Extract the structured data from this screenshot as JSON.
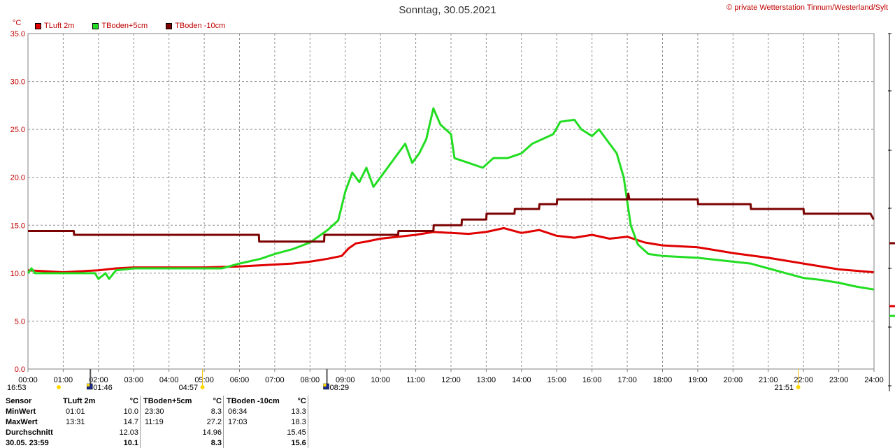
{
  "header": {
    "title": "Sonntag, 30.05.2021",
    "copyright": "© private Wetterstation Tinnum/Westerland/Sylt",
    "unit": "°C"
  },
  "legend": [
    {
      "label": "TLuft 2m",
      "color": "#e00000"
    },
    {
      "label": "TBoden+5cm",
      "color": "#22dd22"
    },
    {
      "label": "TBoden -10cm",
      "color": "#7b0000"
    }
  ],
  "markers": [
    {
      "label": "16:53",
      "time": 0.0,
      "icon": "sun-icon"
    },
    {
      "label": "01:46",
      "time": 1.77,
      "icon": "moon-icon"
    },
    {
      "label": "04:57",
      "time": 4.95,
      "icon": "sun-icon"
    },
    {
      "label": "08:29",
      "time": 8.48,
      "icon": "moon-icon"
    },
    {
      "label": "21:51",
      "time": 21.85,
      "icon": "sun-icon"
    }
  ],
  "stats": {
    "header": [
      "Sensor",
      "TLuft 2m",
      "°C",
      "TBoden+5cm",
      "°C",
      "TBoden -10cm",
      "°C"
    ],
    "rows": [
      [
        "MinWert",
        "01:01",
        "10.0",
        "23:30",
        "8.3",
        "06:34",
        "13.3"
      ],
      [
        "MaxWert",
        "13:31",
        "14.7",
        "11:19",
        "27.2",
        "17:03",
        "18.3"
      ],
      [
        "Durchschnitt",
        "",
        "12.03",
        "",
        "14.96",
        "",
        "15.45"
      ],
      [
        "30.05. 23:59",
        "",
        "10.1",
        "",
        "8.3",
        "",
        "15.6"
      ]
    ]
  },
  "chart_data": {
    "type": "line",
    "xlabel": "",
    "ylabel": "°C",
    "xlim": [
      0,
      24
    ],
    "ylim": [
      0,
      35
    ],
    "grid": true,
    "legend_position": "top-left",
    "x_ticks": [
      "00:00",
      "01:00",
      "02:00",
      "03:00",
      "04:00",
      "05:00",
      "06:00",
      "07:00",
      "08:00",
      "09:00",
      "10:00",
      "11:00",
      "12:00",
      "13:00",
      "14:00",
      "15:00",
      "16:00",
      "17:00",
      "18:00",
      "19:00",
      "20:00",
      "21:00",
      "22:00",
      "23:00",
      "24:00"
    ],
    "y_ticks": [
      "0.0",
      "5.0",
      "10.0",
      "15.0",
      "20.0",
      "25.0",
      "30.0",
      "35.0"
    ],
    "series": [
      {
        "name": "TLuft 2m",
        "color": "#e00000",
        "points": [
          [
            0,
            10.3
          ],
          [
            0.5,
            10.2
          ],
          [
            1.0,
            10.1
          ],
          [
            1.5,
            10.2
          ],
          [
            2.0,
            10.3
          ],
          [
            2.5,
            10.5
          ],
          [
            3.0,
            10.6
          ],
          [
            4.0,
            10.6
          ],
          [
            5.0,
            10.6
          ],
          [
            6.0,
            10.7
          ],
          [
            6.5,
            10.8
          ],
          [
            7.0,
            10.9
          ],
          [
            7.5,
            11.0
          ],
          [
            8.0,
            11.2
          ],
          [
            8.5,
            11.5
          ],
          [
            8.9,
            11.8
          ],
          [
            9.1,
            12.6
          ],
          [
            9.3,
            13.1
          ],
          [
            9.6,
            13.3
          ],
          [
            10.0,
            13.6
          ],
          [
            10.5,
            13.8
          ],
          [
            11.0,
            14.0
          ],
          [
            11.5,
            14.3
          ],
          [
            12.0,
            14.2
          ],
          [
            12.5,
            14.1
          ],
          [
            13.0,
            14.3
          ],
          [
            13.5,
            14.7
          ],
          [
            14.0,
            14.2
          ],
          [
            14.5,
            14.5
          ],
          [
            15.0,
            13.9
          ],
          [
            15.5,
            13.7
          ],
          [
            16.0,
            14.0
          ],
          [
            16.5,
            13.6
          ],
          [
            17.0,
            13.8
          ],
          [
            17.5,
            13.2
          ],
          [
            18.0,
            12.9
          ],
          [
            19.0,
            12.7
          ],
          [
            20.0,
            12.1
          ],
          [
            21.0,
            11.6
          ],
          [
            22.0,
            11.0
          ],
          [
            23.0,
            10.4
          ],
          [
            23.99,
            10.1
          ]
        ]
      },
      {
        "name": "TBoden+5cm",
        "color": "#22dd22",
        "points": [
          [
            0,
            10.0
          ],
          [
            0.1,
            10.5
          ],
          [
            0.2,
            10.0
          ],
          [
            1.0,
            10.0
          ],
          [
            1.9,
            10.0
          ],
          [
            2.0,
            9.4
          ],
          [
            2.2,
            10.0
          ],
          [
            2.3,
            9.4
          ],
          [
            2.5,
            10.3
          ],
          [
            3.0,
            10.5
          ],
          [
            5.0,
            10.5
          ],
          [
            5.5,
            10.5
          ],
          [
            6.0,
            11.0
          ],
          [
            6.6,
            11.5
          ],
          [
            7.0,
            12.0
          ],
          [
            7.5,
            12.5
          ],
          [
            8.0,
            13.2
          ],
          [
            8.5,
            14.5
          ],
          [
            8.8,
            15.5
          ],
          [
            9.0,
            18.5
          ],
          [
            9.2,
            20.5
          ],
          [
            9.4,
            19.5
          ],
          [
            9.6,
            21.0
          ],
          [
            9.8,
            19.0
          ],
          [
            10.0,
            20.0
          ],
          [
            10.3,
            21.5
          ],
          [
            10.5,
            22.5
          ],
          [
            10.7,
            23.5
          ],
          [
            10.9,
            21.5
          ],
          [
            11.1,
            22.5
          ],
          [
            11.3,
            24.0
          ],
          [
            11.5,
            27.2
          ],
          [
            11.7,
            25.5
          ],
          [
            12.0,
            24.5
          ],
          [
            12.1,
            22.0
          ],
          [
            12.5,
            21.5
          ],
          [
            12.9,
            21.0
          ],
          [
            13.2,
            22.0
          ],
          [
            13.6,
            22.0
          ],
          [
            14.0,
            22.5
          ],
          [
            14.3,
            23.5
          ],
          [
            14.6,
            24.0
          ],
          [
            14.9,
            24.5
          ],
          [
            15.1,
            25.8
          ],
          [
            15.5,
            26.0
          ],
          [
            15.7,
            25.0
          ],
          [
            16.0,
            24.3
          ],
          [
            16.2,
            25.0
          ],
          [
            16.4,
            24.0
          ],
          [
            16.7,
            22.5
          ],
          [
            16.9,
            20.0
          ],
          [
            17.1,
            15.0
          ],
          [
            17.3,
            13.0
          ],
          [
            17.6,
            12.0
          ],
          [
            18.0,
            11.8
          ],
          [
            19.0,
            11.6
          ],
          [
            20.0,
            11.2
          ],
          [
            20.5,
            11.0
          ],
          [
            21.0,
            10.5
          ],
          [
            21.5,
            10.0
          ],
          [
            22.0,
            9.5
          ],
          [
            22.5,
            9.3
          ],
          [
            23.0,
            9.0
          ],
          [
            23.5,
            8.6
          ],
          [
            23.99,
            8.3
          ]
        ]
      },
      {
        "name": "TBoden -10cm",
        "color": "#7b0000",
        "points": [
          [
            0,
            14.4
          ],
          [
            1.3,
            14.4
          ],
          [
            1.31,
            14.0
          ],
          [
            6.55,
            14.0
          ],
          [
            6.56,
            13.3
          ],
          [
            8.4,
            13.3
          ],
          [
            8.41,
            14.0
          ],
          [
            10.5,
            14.0
          ],
          [
            10.51,
            14.4
          ],
          [
            11.5,
            14.4
          ],
          [
            11.51,
            15.0
          ],
          [
            12.3,
            15.0
          ],
          [
            12.31,
            15.6
          ],
          [
            13.0,
            15.6
          ],
          [
            13.01,
            16.2
          ],
          [
            13.8,
            16.2
          ],
          [
            13.81,
            16.7
          ],
          [
            14.5,
            16.7
          ],
          [
            14.51,
            17.2
          ],
          [
            15.0,
            17.2
          ],
          [
            15.01,
            17.7
          ],
          [
            17.0,
            17.7
          ],
          [
            17.03,
            18.3
          ],
          [
            17.06,
            17.7
          ],
          [
            19.0,
            17.7
          ],
          [
            19.01,
            17.2
          ],
          [
            20.5,
            17.2
          ],
          [
            20.51,
            16.7
          ],
          [
            22.0,
            16.7
          ],
          [
            22.01,
            16.2
          ],
          [
            23.9,
            16.2
          ],
          [
            23.99,
            15.6
          ]
        ]
      }
    ]
  }
}
